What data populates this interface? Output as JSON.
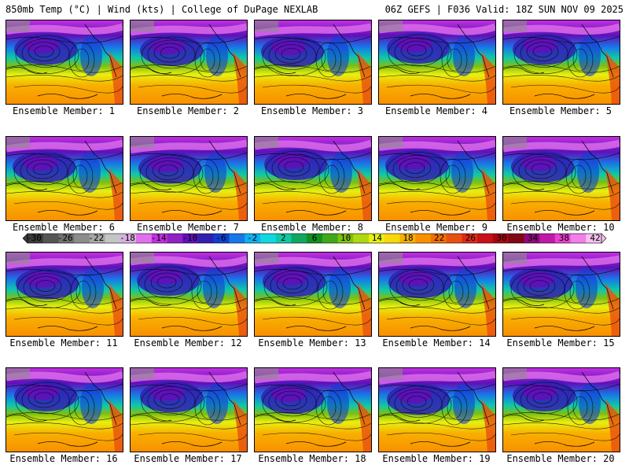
{
  "header": {
    "left": "850mb Temp (°C) | Wind (kts) | College of DuPage NEXLAB",
    "right": "06Z GEFS | F036 Valid: 18Z SUN NOV 09 2025"
  },
  "panels": [
    "Ensemble Member: 1",
    "Ensemble Member: 2",
    "Ensemble Member: 3",
    "Ensemble Member: 4",
    "Ensemble Member: 5",
    "Ensemble Member: 6",
    "Ensemble Member: 7",
    "Ensemble Member: 8",
    "Ensemble Member: 9",
    "Ensemble Member: 10",
    "Ensemble Member: 11",
    "Ensemble Member: 12",
    "Ensemble Member: 13",
    "Ensemble Member: 14",
    "Ensemble Member: 15",
    "Ensemble Member: 16",
    "Ensemble Member: 17",
    "Ensemble Member: 18",
    "Ensemble Member: 19",
    "Ensemble Member: 20"
  ],
  "colorbar": {
    "ticks": [
      "-30",
      "-26",
      "-22",
      "-18",
      "-14",
      "-10",
      "-6",
      "-2",
      "2",
      "6",
      "10",
      "14",
      "18",
      "22",
      "26",
      "30",
      "34",
      "38",
      "42"
    ],
    "colors": [
      "#3a3a3a",
      "#555555",
      "#707070",
      "#8c8c8c",
      "#a8a8a8",
      "#c4c4c4",
      "#d8b0e0",
      "#e070ec",
      "#c030e0",
      "#9020c8",
      "#6010b8",
      "#3020b0",
      "#1040d0",
      "#1878e8",
      "#10b0f0",
      "#10d8e0",
      "#10c8a8",
      "#10a860",
      "#109020",
      "#40a818",
      "#80c010",
      "#b0d810",
      "#e8f010",
      "#f8d808",
      "#f8b000",
      "#f89000",
      "#f07000",
      "#e85010",
      "#e02818",
      "#c81018",
      "#a80810",
      "#800810",
      "#900878",
      "#c018a8",
      "#e840d0",
      "#f080e8",
      "#f8c0f0"
    ]
  }
}
